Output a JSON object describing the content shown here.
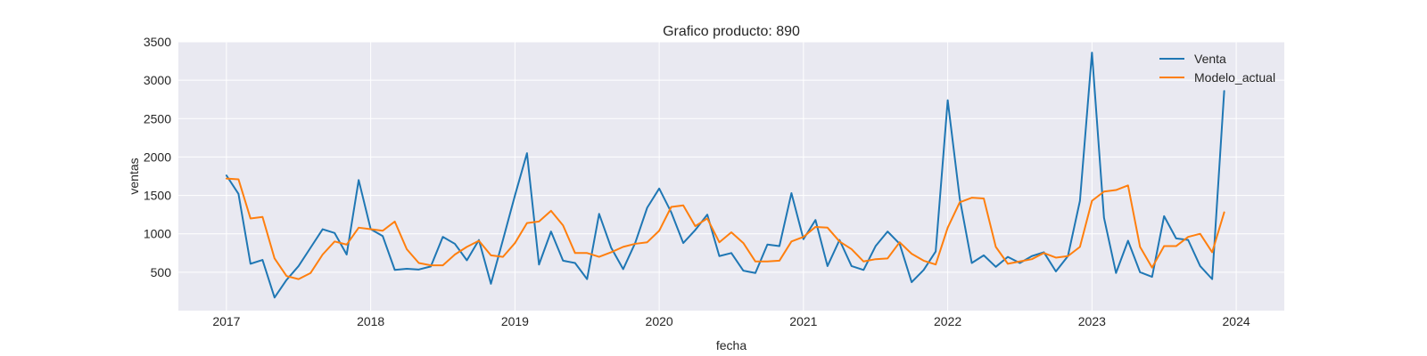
{
  "chart_data": {
    "type": "line",
    "title": "Grafico producto: 890",
    "xlabel": "fecha",
    "ylabel": "ventas",
    "x_start": "2017-01",
    "x_step": "month",
    "xlim": [
      "2016-09",
      "2024-05"
    ],
    "ylim": [
      0,
      3500
    ],
    "xticks": [
      "2017",
      "2018",
      "2019",
      "2020",
      "2021",
      "2022",
      "2023",
      "2024"
    ],
    "yticks": [
      500,
      1000,
      1500,
      2000,
      2500,
      3000,
      3500
    ],
    "grid": true,
    "legend_position": "top-right",
    "background": "#e9e9f1",
    "series": [
      {
        "name": "Venta",
        "color": "#1f77b4",
        "values": [
          1760,
          1520,
          610,
          660,
          170,
          400,
          580,
          820,
          1060,
          1010,
          730,
          1700,
          1060,
          970,
          530,
          545,
          535,
          575,
          960,
          870,
          655,
          920,
          350,
          920,
          1500,
          2050,
          600,
          1030,
          650,
          620,
          410,
          1260,
          820,
          540,
          880,
          1340,
          1590,
          1280,
          880,
          1050,
          1250,
          710,
          750,
          520,
          490,
          860,
          840,
          1530,
          930,
          1180,
          580,
          920,
          580,
          530,
          840,
          1030,
          870,
          370,
          530,
          770,
          2740,
          1460,
          620,
          720,
          570,
          700,
          620,
          710,
          760,
          510,
          710,
          1430,
          3360,
          1210,
          490,
          910,
          500,
          440,
          1230,
          940,
          920,
          580,
          410,
          2860
        ]
      },
      {
        "name": "Modelo_actual",
        "color": "#ff7f0e",
        "values": [
          1720,
          1710,
          1200,
          1220,
          680,
          450,
          410,
          490,
          730,
          900,
          860,
          1080,
          1060,
          1040,
          1160,
          800,
          620,
          590,
          590,
          730,
          830,
          910,
          720,
          700,
          880,
          1140,
          1160,
          1300,
          1110,
          750,
          750,
          700,
          760,
          830,
          870,
          890,
          1040,
          1350,
          1370,
          1100,
          1200,
          890,
          1020,
          880,
          640,
          640,
          650,
          900,
          960,
          1090,
          1080,
          900,
          800,
          640,
          670,
          680,
          890,
          740,
          650,
          600,
          1080,
          1410,
          1470,
          1460,
          830,
          610,
          640,
          670,
          750,
          690,
          710,
          830,
          1430,
          1550,
          1570,
          1630,
          830,
          560,
          840,
          840,
          960,
          1000,
          760,
          1280
        ]
      }
    ]
  }
}
